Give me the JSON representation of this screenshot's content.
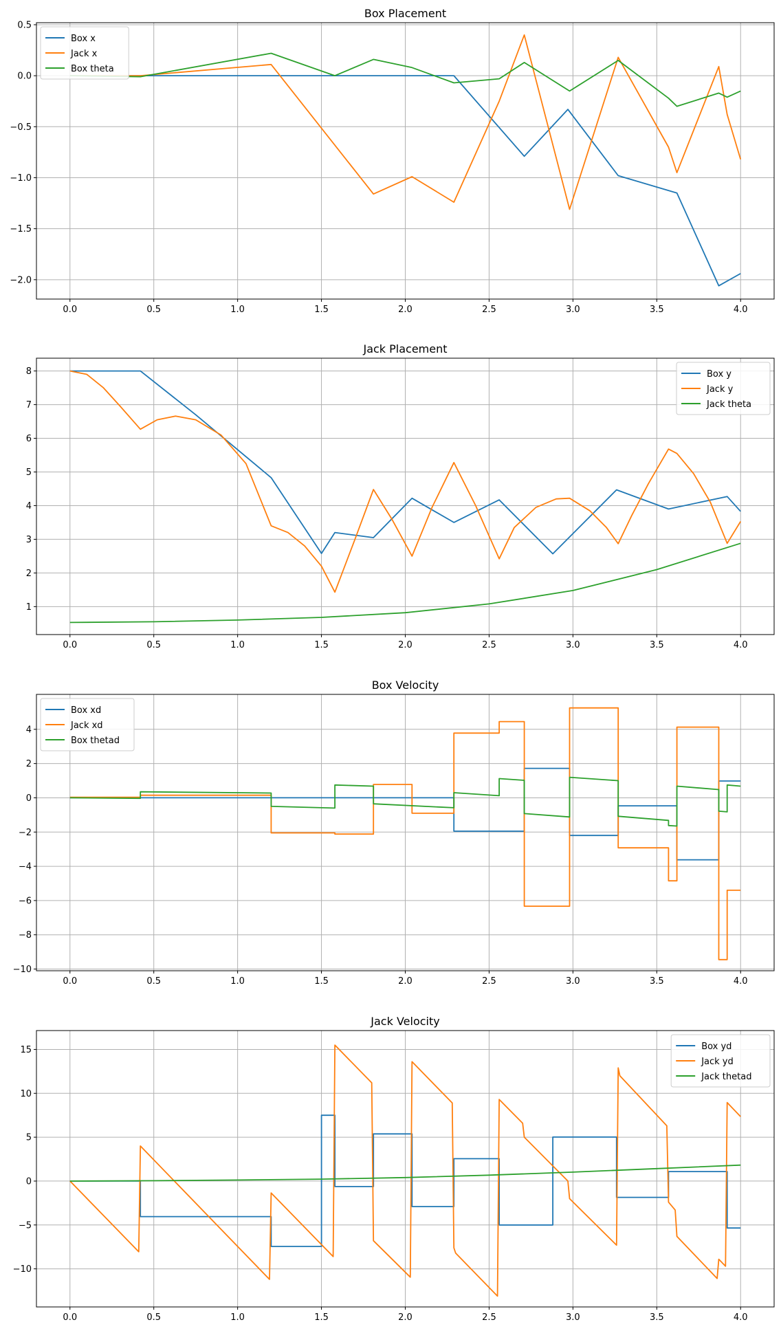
{
  "colors": {
    "blue": "#1f77b4",
    "orange": "#ff7f0e",
    "green": "#2ca02c"
  },
  "chart_data": [
    {
      "type": "line",
      "title": "Box Placement",
      "xlim": [
        -0.2,
        4.2
      ],
      "ylim": [
        -2.19,
        0.52
      ],
      "xticks": [
        "0.0",
        "0.5",
        "1.0",
        "1.5",
        "2.0",
        "2.5",
        "3.0",
        "3.5",
        "4.0"
      ],
      "yticks": [
        "0.5",
        "0.0",
        "−0.5",
        "−1.0",
        "−1.5",
        "−2.0"
      ],
      "grid": true,
      "legend": "top-left",
      "series": [
        {
          "name": "Box x",
          "color": "#1f77b4",
          "points": [
            [
              0,
              0
            ],
            [
              2.29,
              0
            ],
            [
              2.71,
              -0.79
            ],
            [
              2.97,
              -0.33
            ],
            [
              3.27,
              -0.98
            ],
            [
              3.62,
              -1.15
            ],
            [
              3.87,
              -2.06
            ],
            [
              4.0,
              -1.94
            ]
          ]
        },
        {
          "name": "Jack x",
          "color": "#ff7f0e",
          "points": [
            [
              0,
              0
            ],
            [
              0.42,
              0
            ],
            [
              1.2,
              0.11
            ],
            [
              1.81,
              -1.16
            ],
            [
              2.04,
              -0.99
            ],
            [
              2.29,
              -1.24
            ],
            [
              2.56,
              -0.25
            ],
            [
              2.71,
              0.4
            ],
            [
              2.98,
              -1.31
            ],
            [
              3.27,
              0.18
            ],
            [
              3.57,
              -0.7
            ],
            [
              3.62,
              -0.95
            ],
            [
              3.87,
              0.09
            ],
            [
              3.92,
              -0.38
            ],
            [
              4.0,
              -0.82
            ]
          ]
        },
        {
          "name": "Box theta",
          "color": "#2ca02c",
          "points": [
            [
              0,
              0
            ],
            [
              0.42,
              -0.01
            ],
            [
              1.2,
              0.22
            ],
            [
              1.58,
              0.0
            ],
            [
              1.81,
              0.16
            ],
            [
              2.04,
              0.08
            ],
            [
              2.29,
              -0.07
            ],
            [
              2.56,
              -0.03
            ],
            [
              2.71,
              0.13
            ],
            [
              2.98,
              -0.15
            ],
            [
              3.27,
              0.15
            ],
            [
              3.57,
              -0.22
            ],
            [
              3.62,
              -0.3
            ],
            [
              3.87,
              -0.17
            ],
            [
              3.92,
              -0.21
            ],
            [
              4.0,
              -0.15
            ]
          ]
        }
      ]
    },
    {
      "type": "line",
      "title": "Jack Placement",
      "xlim": [
        -0.2,
        4.2
      ],
      "ylim": [
        0.17,
        8.38
      ],
      "xticks": [
        "0.0",
        "0.5",
        "1.0",
        "1.5",
        "2.0",
        "2.5",
        "3.0",
        "3.5",
        "4.0"
      ],
      "yticks": [
        "1",
        "2",
        "3",
        "4",
        "5",
        "6",
        "7",
        "8"
      ],
      "grid": true,
      "legend": "top-right",
      "series": [
        {
          "name": "Box y",
          "color": "#1f77b4",
          "points": [
            [
              0,
              8
            ],
            [
              0.42,
              8
            ],
            [
              0.75,
              6.7
            ],
            [
              1.2,
              4.83
            ],
            [
              1.5,
              2.58
            ],
            [
              1.58,
              3.2
            ],
            [
              1.81,
              3.05
            ],
            [
              2.04,
              4.22
            ],
            [
              2.29,
              3.5
            ],
            [
              2.56,
              4.17
            ],
            [
              2.88,
              2.57
            ],
            [
              3.26,
              4.47
            ],
            [
              3.57,
              3.9
            ],
            [
              3.92,
              4.27
            ],
            [
              4.0,
              3.83
            ]
          ]
        },
        {
          "name": "Jack y",
          "color": "#ff7f0e",
          "points": [
            [
              0,
              8
            ],
            [
              0.1,
              7.9
            ],
            [
              0.2,
              7.5
            ],
            [
              0.3,
              6.95
            ],
            [
              0.42,
              6.27
            ],
            [
              0.52,
              6.55
            ],
            [
              0.63,
              6.66
            ],
            [
              0.75,
              6.55
            ],
            [
              0.9,
              6.1
            ],
            [
              1.05,
              5.25
            ],
            [
              1.2,
              3.4
            ],
            [
              1.3,
              3.2
            ],
            [
              1.4,
              2.8
            ],
            [
              1.5,
              2.2
            ],
            [
              1.58,
              1.43
            ],
            [
              1.7,
              3.0
            ],
            [
              1.81,
              4.48
            ],
            [
              1.92,
              3.6
            ],
            [
              2.04,
              2.5
            ],
            [
              2.16,
              3.95
            ],
            [
              2.29,
              5.28
            ],
            [
              2.42,
              4.0
            ],
            [
              2.56,
              2.42
            ],
            [
              2.65,
              3.35
            ],
            [
              2.78,
              3.95
            ],
            [
              2.9,
              4.2
            ],
            [
              2.98,
              4.22
            ],
            [
              3.1,
              3.85
            ],
            [
              3.2,
              3.35
            ],
            [
              3.27,
              2.87
            ],
            [
              3.35,
              3.7
            ],
            [
              3.45,
              4.65
            ],
            [
              3.57,
              5.68
            ],
            [
              3.62,
              5.55
            ],
            [
              3.72,
              4.95
            ],
            [
              3.82,
              4.1
            ],
            [
              3.92,
              2.88
            ],
            [
              4.0,
              3.53
            ]
          ]
        },
        {
          "name": "Jack theta",
          "color": "#2ca02c",
          "points": [
            [
              0,
              0.53
            ],
            [
              0.5,
              0.55
            ],
            [
              1.0,
              0.6
            ],
            [
              1.5,
              0.68
            ],
            [
              2.0,
              0.82
            ],
            [
              2.5,
              1.08
            ],
            [
              3.0,
              1.48
            ],
            [
              3.5,
              2.1
            ],
            [
              4.0,
              2.88
            ]
          ]
        }
      ]
    },
    {
      "type": "line",
      "title": "Box Velocity",
      "xlim": [
        -0.2,
        4.2
      ],
      "ylim": [
        -10.1,
        6.04
      ],
      "xticks": [
        "0.0",
        "0.5",
        "1.0",
        "1.5",
        "2.0",
        "2.5",
        "3.0",
        "3.5",
        "4.0"
      ],
      "yticks": [
        "4",
        "2",
        "0",
        "−2",
        "−4",
        "−6",
        "−8",
        "−10"
      ],
      "grid": true,
      "legend": "top-left",
      "series": [
        {
          "name": "Box xd",
          "color": "#1f77b4",
          "points": [
            [
              0,
              0
            ],
            [
              2.29,
              0
            ],
            [
              2.29,
              -1.95
            ],
            [
              2.71,
              -1.95
            ],
            [
              2.71,
              1.72
            ],
            [
              2.98,
              1.72
            ],
            [
              2.98,
              -2.2
            ],
            [
              3.27,
              -2.2
            ],
            [
              3.27,
              -0.47
            ],
            [
              3.62,
              -0.47
            ],
            [
              3.62,
              -3.62
            ],
            [
              3.87,
              -3.62
            ],
            [
              3.87,
              0.98
            ],
            [
              4.0,
              0.98
            ]
          ]
        },
        {
          "name": "Jack xd",
          "color": "#ff7f0e",
          "points": [
            [
              0,
              0.03
            ],
            [
              0.42,
              0.03
            ],
            [
              0.42,
              0.15
            ],
            [
              1.2,
              0.15
            ],
            [
              1.2,
              -2.05
            ],
            [
              1.58,
              -2.05
            ],
            [
              1.58,
              -2.12
            ],
            [
              1.81,
              -2.12
            ],
            [
              1.81,
              0.78
            ],
            [
              2.04,
              0.78
            ],
            [
              2.04,
              -0.9
            ],
            [
              2.29,
              -0.9
            ],
            [
              2.29,
              3.78
            ],
            [
              2.56,
              3.78
            ],
            [
              2.56,
              4.45
            ],
            [
              2.71,
              4.45
            ],
            [
              2.71,
              -6.33
            ],
            [
              2.98,
              -6.33
            ],
            [
              2.98,
              5.25
            ],
            [
              3.27,
              5.25
            ],
            [
              3.27,
              -2.92
            ],
            [
              3.57,
              -2.92
            ],
            [
              3.57,
              -4.85
            ],
            [
              3.62,
              -4.85
            ],
            [
              3.62,
              4.13
            ],
            [
              3.87,
              4.13
            ],
            [
              3.87,
              -9.45
            ],
            [
              3.92,
              -9.45
            ],
            [
              3.92,
              -5.4
            ],
            [
              4.0,
              -5.4
            ]
          ]
        },
        {
          "name": "Box thetad",
          "color": "#2ca02c",
          "points": [
            [
              0,
              0
            ],
            [
              0.42,
              -0.03
            ],
            [
              0.42,
              0.35
            ],
            [
              1.2,
              0.28
            ],
            [
              1.2,
              -0.5
            ],
            [
              1.58,
              -0.6
            ],
            [
              1.58,
              0.75
            ],
            [
              1.81,
              0.68
            ],
            [
              1.81,
              -0.35
            ],
            [
              2.29,
              -0.58
            ],
            [
              2.29,
              0.3
            ],
            [
              2.56,
              0.12
            ],
            [
              2.56,
              1.12
            ],
            [
              2.71,
              1.02
            ],
            [
              2.71,
              -0.92
            ],
            [
              2.98,
              -1.12
            ],
            [
              2.98,
              1.2
            ],
            [
              3.27,
              1.0
            ],
            [
              3.27,
              -1.08
            ],
            [
              3.57,
              -1.32
            ],
            [
              3.57,
              -1.62
            ],
            [
              3.62,
              -1.65
            ],
            [
              3.62,
              0.68
            ],
            [
              3.87,
              0.48
            ],
            [
              3.87,
              -0.78
            ],
            [
              3.92,
              -0.82
            ],
            [
              3.92,
              0.75
            ],
            [
              4.0,
              0.68
            ]
          ]
        }
      ]
    },
    {
      "type": "line",
      "title": "Jack Velocity",
      "xlim": [
        -0.2,
        4.2
      ],
      "ylim": [
        -14.34,
        17.15
      ],
      "xticks": [
        "0.0",
        "0.5",
        "1.0",
        "1.5",
        "2.0",
        "2.5",
        "3.0",
        "3.5",
        "4.0"
      ],
      "yticks": [
        "15",
        "10",
        "5",
        "0",
        "−5",
        "−10"
      ],
      "grid": true,
      "legend": "top-right",
      "series": [
        {
          "name": "Box yd",
          "color": "#1f77b4",
          "points": [
            [
              0,
              0
            ],
            [
              0.42,
              0
            ],
            [
              0.42,
              -4.05
            ],
            [
              1.2,
              -4.05
            ],
            [
              1.2,
              -7.45
            ],
            [
              1.5,
              -7.45
            ],
            [
              1.5,
              7.5
            ],
            [
              1.58,
              7.5
            ],
            [
              1.58,
              -0.62
            ],
            [
              1.81,
              -0.62
            ],
            [
              1.81,
              5.38
            ],
            [
              2.04,
              5.38
            ],
            [
              2.04,
              -2.9
            ],
            [
              2.29,
              -2.9
            ],
            [
              2.29,
              2.55
            ],
            [
              2.56,
              2.55
            ],
            [
              2.56,
              -5.0
            ],
            [
              2.88,
              -5.0
            ],
            [
              2.88,
              5.02
            ],
            [
              3.26,
              5.02
            ],
            [
              3.26,
              -1.85
            ],
            [
              3.57,
              -1.85
            ],
            [
              3.57,
              1.08
            ],
            [
              3.92,
              1.08
            ],
            [
              3.92,
              -5.35
            ],
            [
              4.0,
              -5.35
            ]
          ]
        },
        {
          "name": "Jack yd",
          "color": "#ff7f0e",
          "points": [
            [
              0,
              0
            ],
            [
              0.41,
              -8.05
            ],
            [
              0.42,
              4.0
            ],
            [
              1.19,
              -11.2
            ],
            [
              1.2,
              -1.35
            ],
            [
              1.57,
              -8.6
            ],
            [
              1.58,
              15.5
            ],
            [
              1.8,
              11.2
            ],
            [
              1.81,
              -6.8
            ],
            [
              2.03,
              -10.95
            ],
            [
              2.04,
              13.6
            ],
            [
              2.28,
              8.9
            ],
            [
              2.29,
              -7.6
            ],
            [
              2.3,
              -8.2
            ],
            [
              2.55,
              -13.1
            ],
            [
              2.56,
              9.3
            ],
            [
              2.7,
              6.6
            ],
            [
              2.71,
              5.0
            ],
            [
              2.97,
              0
            ],
            [
              2.98,
              -2.0
            ],
            [
              3.26,
              -7.3
            ],
            [
              3.27,
              12.9
            ],
            [
              3.28,
              12.0
            ],
            [
              3.56,
              6.3
            ],
            [
              3.57,
              -2.4
            ],
            [
              3.61,
              -3.3
            ],
            [
              3.62,
              -6.3
            ],
            [
              3.86,
              -11.1
            ],
            [
              3.87,
              -8.9
            ],
            [
              3.91,
              -9.7
            ],
            [
              3.92,
              8.95
            ],
            [
              4.0,
              7.35
            ]
          ]
        },
        {
          "name": "Jack thetad",
          "color": "#2ca02c",
          "points": [
            [
              0,
              0
            ],
            [
              0.5,
              0.04
            ],
            [
              1.0,
              0.12
            ],
            [
              1.5,
              0.22
            ],
            [
              2.0,
              0.4
            ],
            [
              2.5,
              0.68
            ],
            [
              3.0,
              1.02
            ],
            [
              3.5,
              1.42
            ],
            [
              4.0,
              1.82
            ]
          ]
        }
      ]
    }
  ]
}
